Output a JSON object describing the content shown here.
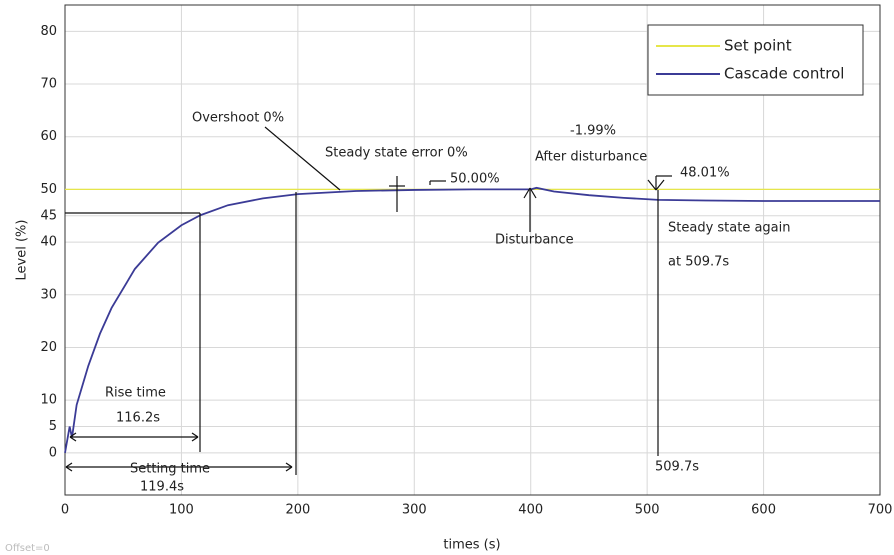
{
  "chart_data": {
    "type": "line",
    "x_label": "times (s)",
    "y_label": "Level (%)",
    "x": [
      0,
      4,
      6,
      10,
      20,
      30,
      40,
      60,
      80,
      100,
      116.2,
      140,
      170,
      200,
      250,
      300,
      350,
      400,
      405,
      420,
      450,
      480,
      509.7,
      550,
      600,
      650,
      700
    ],
    "series": [
      {
        "name": "Set point",
        "color": "#e6e64a",
        "values": [
          50,
          50,
          50,
          50,
          50,
          50,
          50,
          50,
          50,
          50,
          50,
          50,
          50,
          50,
          50,
          50,
          50,
          50,
          50,
          50,
          50,
          50,
          50,
          50,
          50,
          50,
          50
        ]
      },
      {
        "name": "Cascade control",
        "color": "#3b3b96",
        "values": [
          0,
          5,
          2.9,
          9.1,
          16.5,
          22.6,
          27.5,
          34.9,
          39.9,
          43.2,
          45.1,
          47.0,
          48.3,
          49.1,
          49.7,
          49.9,
          50.0,
          50.0,
          50.3,
          49.6,
          48.9,
          48.4,
          48.01,
          47.9,
          47.8,
          47.8,
          47.8
        ]
      }
    ],
    "xlim": [
      0,
      700
    ],
    "xticks": [
      0,
      100,
      200,
      300,
      400,
      500,
      600,
      700
    ],
    "ylim": [
      -8,
      85
    ],
    "yticks": [
      0,
      5,
      10,
      20,
      30,
      40,
      45,
      50,
      60,
      70,
      80
    ],
    "grid": true,
    "legend": "top-right",
    "annotations": [
      "Overshoot 0%",
      "Steady state error 0%",
      "50.00%",
      "-1.99%",
      "After disturbance",
      "48.01%",
      "Disturbance",
      "Steady state again",
      "at 509.7s",
      "Rise time",
      "116.2s",
      "Setting time",
      "119.4s",
      "509.7s",
      "Offset=0"
    ]
  }
}
